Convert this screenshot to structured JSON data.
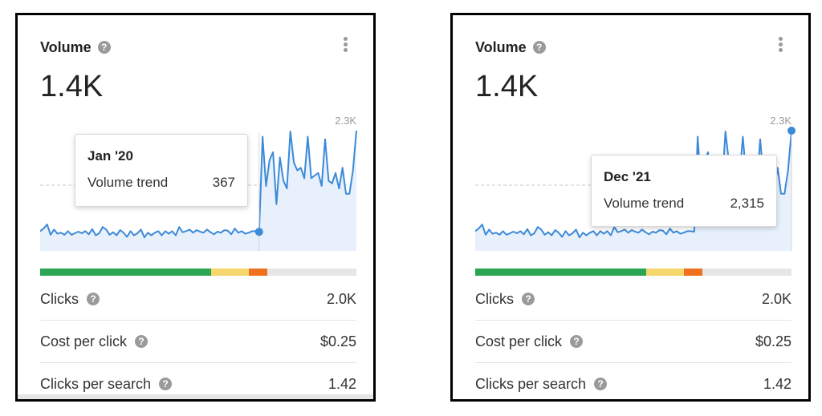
{
  "colors": {
    "line": "#3c8ad8",
    "fill": "#e7f0fb",
    "dashed": "#c8c8c8",
    "bar_green": "#2aa556",
    "bar_yellow": "#f5d76e",
    "bar_orange": "#f0701f",
    "bar_gray": "#e6e6e6"
  },
  "widgets": [
    {
      "title": "Volume",
      "help_icon": "question-circle-icon",
      "menu_icon": "kebab-menu-icon",
      "volume_value": "1.4K",
      "chart_max_label": "2.3K",
      "tooltip": {
        "date": "Jan '20",
        "label": "Volume trend",
        "value": "367"
      },
      "rows": [
        {
          "label": "Clicks",
          "value": "2.0K"
        },
        {
          "label": "Cost per click",
          "value": "$0.25"
        },
        {
          "label": "Clicks per search",
          "value": "1.42"
        }
      ]
    },
    {
      "title": "Volume",
      "help_icon": "question-circle-icon",
      "menu_icon": "kebab-menu-icon",
      "volume_value": "1.4K",
      "chart_max_label": "2.3K",
      "tooltip": {
        "date": "Dec '21",
        "label": "Volume trend",
        "value": "2,315"
      },
      "rows": [
        {
          "label": "Clicks",
          "value": "2.0K"
        },
        {
          "label": "Cost per click",
          "value": "$0.25"
        },
        {
          "label": "Clicks per search",
          "value": "1.42"
        }
      ]
    }
  ],
  "chart_data": {
    "type": "area",
    "y_max_label": "2.3K",
    "ylim": [
      0,
      2315
    ],
    "series": [
      {
        "values": [
          380,
          430,
          510,
          310,
          410,
          330,
          350,
          310,
          380,
          310,
          340,
          370,
          340,
          380,
          320,
          420,
          300,
          340,
          460,
          410,
          310,
          360,
          300,
          400,
          350,
          270,
          380,
          300,
          340,
          410,
          260,
          350,
          300,
          350,
          380,
          300,
          380,
          330,
          380,
          300,
          460,
          360,
          380,
          410,
          350,
          400,
          370,
          350,
          410,
          360,
          320,
          370,
          350,
          400,
          390,
          320,
          430,
          350,
          380,
          330,
          350,
          380,
          380,
          367,
          2200,
          1250,
          1750,
          1900,
          900,
          1800,
          1350,
          1200,
          2300,
          1700,
          1550,
          1600,
          1400,
          2200,
          1400,
          1450,
          1500,
          1250,
          2150,
          1350,
          1300,
          1500,
          1200,
          1600,
          1100,
          1100,
          1550,
          2315
        ]
      }
    ],
    "markers": [
      {
        "tooltip_date": "Jan '20",
        "value": 367
      },
      {
        "tooltip_date": "Dec '21",
        "value": 2315
      }
    ]
  }
}
